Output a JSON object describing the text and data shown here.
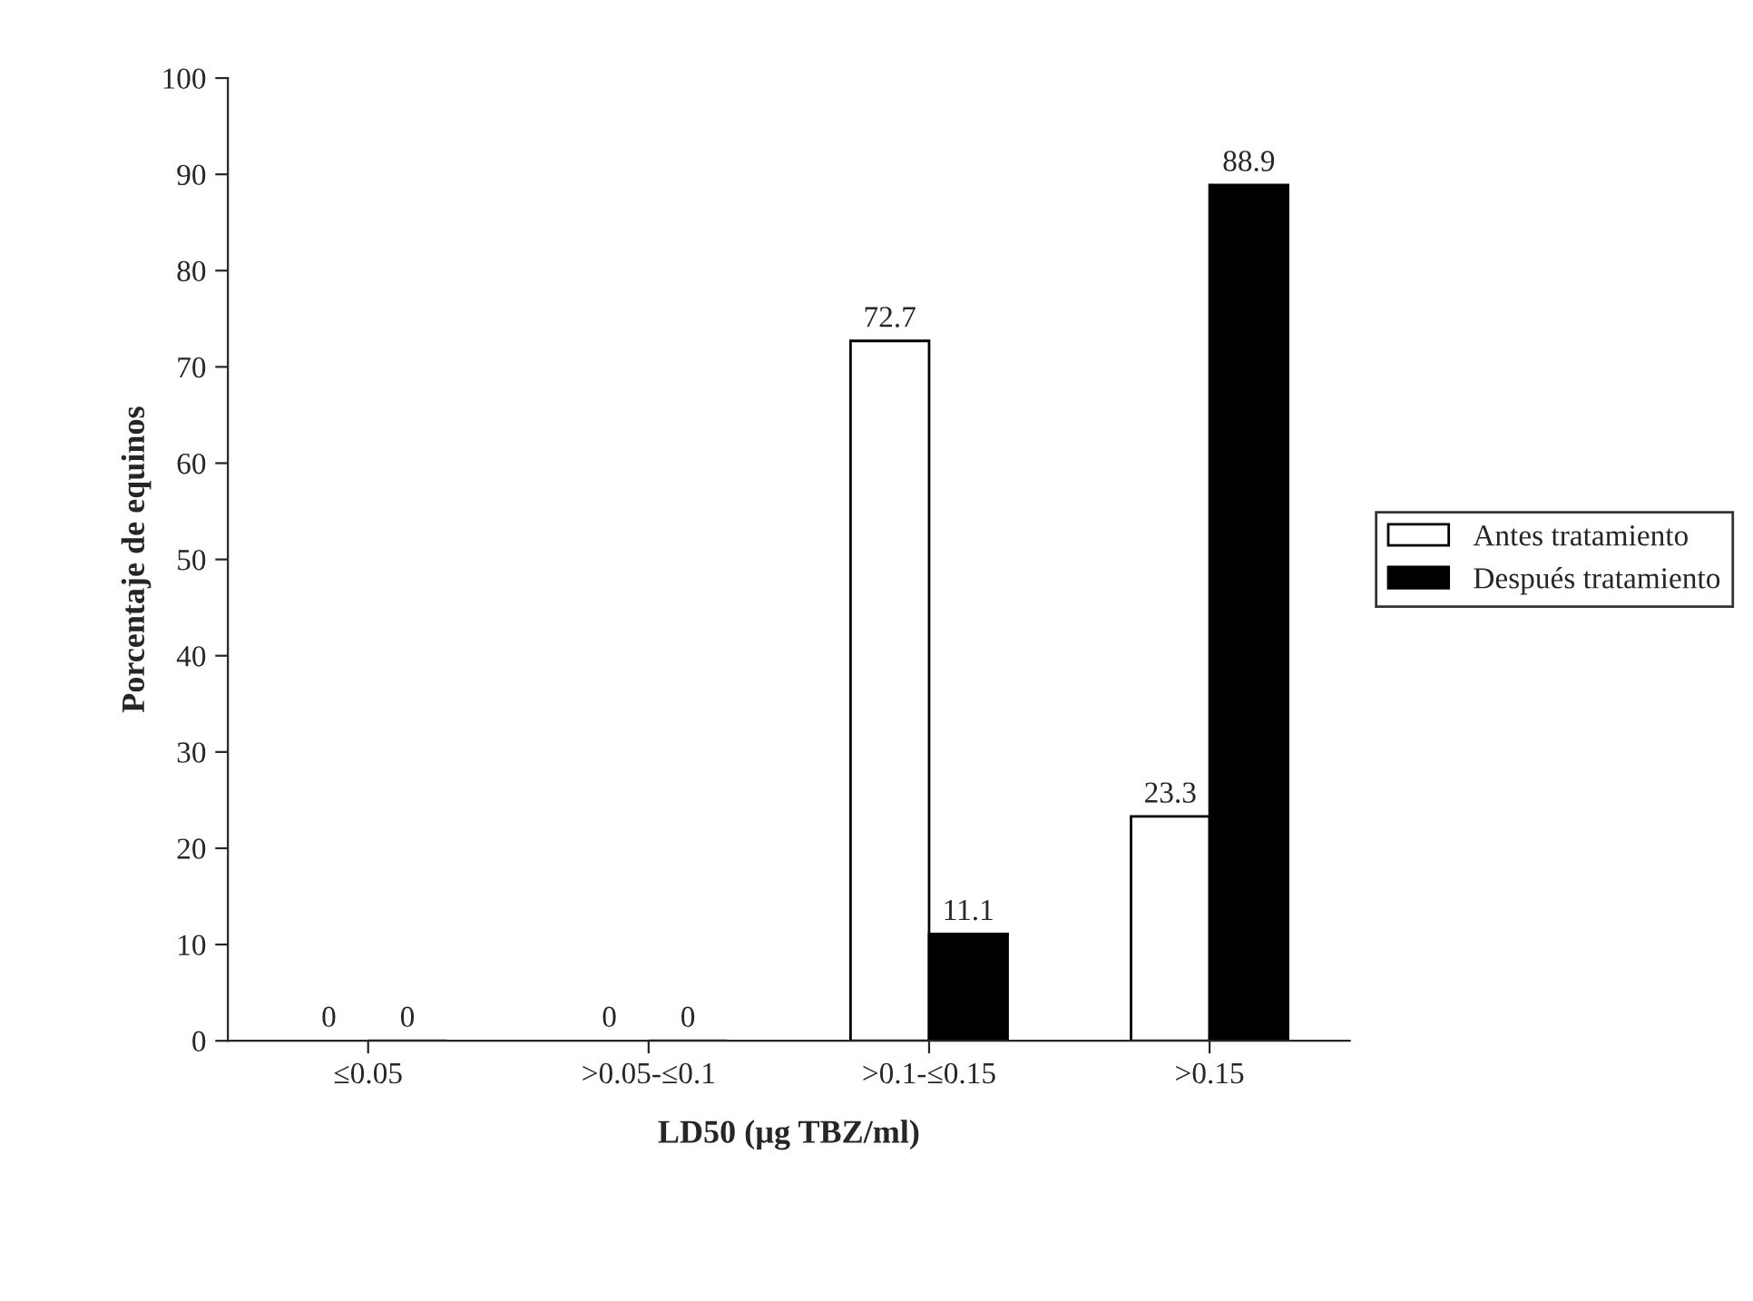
{
  "chart_data": {
    "type": "bar",
    "xlabel": "LD50 (µg TBZ/ml)",
    "ylabel": "Porcentaje de equinos",
    "categories": [
      "≤0.05",
      ">0.05-≤0.1",
      ">0.1-≤0.15",
      ">0.15"
    ],
    "series": [
      {
        "name": "Antes tratamiento",
        "color": "#ffffff",
        "values": [
          0,
          0,
          72.7,
          23.3
        ]
      },
      {
        "name": "Después tratamiento",
        "color": "#000000",
        "values": [
          0,
          0,
          11.1,
          88.9
        ]
      }
    ],
    "ylim": [
      0,
      100
    ],
    "yticks": [
      0,
      10,
      20,
      30,
      40,
      50,
      60,
      70,
      80,
      90,
      100
    ],
    "data_labels": true,
    "legend": "right",
    "grid": false
  }
}
